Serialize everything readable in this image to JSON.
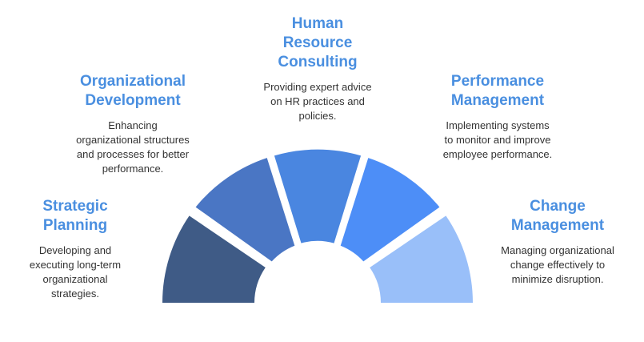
{
  "colors": {
    "title": "#4a8fe0",
    "text": "#333333",
    "background": "#ffffff"
  },
  "segments": [
    {
      "title_lines": [
        "Strategic",
        "Planning"
      ],
      "desc_lines": [
        "Developing and",
        "executing long-term",
        "organizational",
        "strategies."
      ],
      "color": "#3f5b86"
    },
    {
      "title_lines": [
        "Organizational",
        "Development"
      ],
      "desc_lines": [
        "Enhancing",
        "organizational structures",
        "and processes for better",
        "performance."
      ],
      "color": "#4a76c4"
    },
    {
      "title_lines": [
        "Human",
        "Resource",
        "Consulting"
      ],
      "desc_lines": [
        "Providing expert advice",
        "on HR practices and",
        "policies."
      ],
      "color": "#4a86e0"
    },
    {
      "title_lines": [
        "Performance",
        "Management"
      ],
      "desc_lines": [
        "Implementing systems",
        "to monitor and improve",
        "employee performance."
      ],
      "color": "#4d8ef7"
    },
    {
      "title_lines": [
        "Change",
        "Management"
      ],
      "desc_lines": [
        "Managing organizational",
        "change effectively to",
        "minimize disruption."
      ],
      "color": "#99bff9"
    }
  ]
}
